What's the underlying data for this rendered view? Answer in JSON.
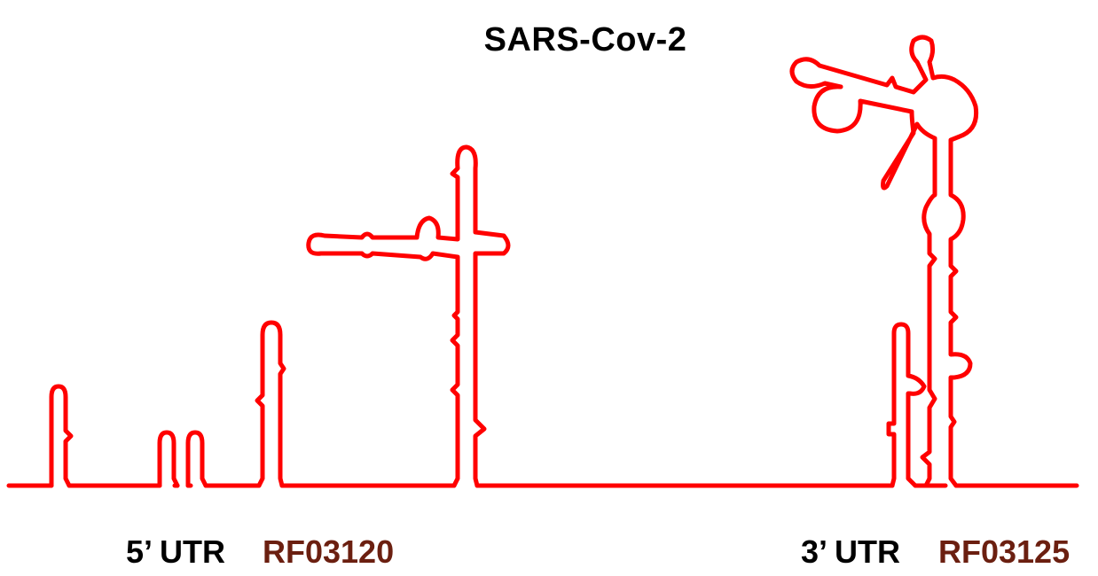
{
  "title": "SARS-Cov-2",
  "structure_color": "#ff0000",
  "utr5": {
    "label": "5’ UTR",
    "rfam": "RF03120"
  },
  "utr3": {
    "label": "3’ UTR",
    "rfam": "RF03125"
  },
  "label_colors": {
    "utr": "#000000",
    "rfam": "#6b1f10"
  }
}
